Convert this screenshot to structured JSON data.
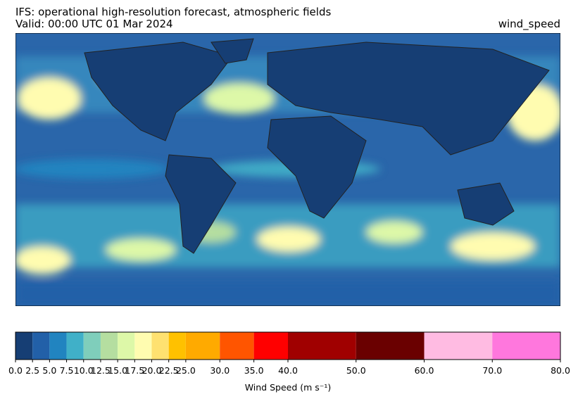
{
  "header": {
    "title": "IFS: operational high-resolution forecast, atmospheric fields",
    "subtitle": "Valid: 00:00 UTC 01 Mar 2024",
    "variable": "wind_speed"
  },
  "colorbar": {
    "label": "Wind Speed (m s⁻¹)",
    "ticks": [
      {
        "value": 0,
        "label": "0.0"
      },
      {
        "value": 2.5,
        "label": "2.5"
      },
      {
        "value": 5,
        "label": "5.0"
      },
      {
        "value": 7.5,
        "label": "7.5"
      },
      {
        "value": 10,
        "label": "10.0"
      },
      {
        "value": 12.5,
        "label": "12.5"
      },
      {
        "value": 15,
        "label": "15.0"
      },
      {
        "value": 17.5,
        "label": "17.5"
      },
      {
        "value": 20,
        "label": "20.0"
      },
      {
        "value": 22.5,
        "label": "22.5"
      },
      {
        "value": 25,
        "label": "25.0"
      },
      {
        "value": 30,
        "label": "30.0"
      },
      {
        "value": 35,
        "label": "35.0"
      },
      {
        "value": 40,
        "label": "40.0"
      },
      {
        "value": 50,
        "label": "50.0"
      },
      {
        "value": 60,
        "label": "60.0"
      },
      {
        "value": 70,
        "label": "70.0"
      },
      {
        "value": 80,
        "label": "80.0"
      }
    ],
    "colors": [
      "#163e74",
      "#2260a8",
      "#2184c0",
      "#40b0c8",
      "#7fcebb",
      "#b5dea0",
      "#ddf8a8",
      "#fffcb0",
      "#fee170",
      "#ffc100",
      "#ffaa00",
      "#ff5500",
      "#ff0000",
      "#a00000",
      "#6a0000",
      "#ffbbe2",
      "#ff77dd"
    ]
  }
}
